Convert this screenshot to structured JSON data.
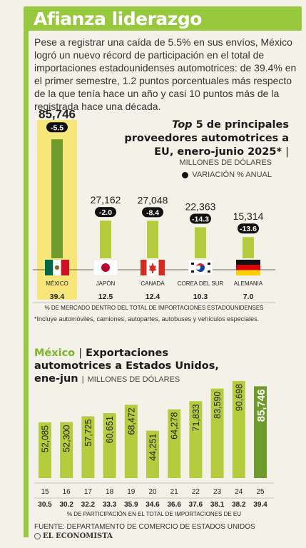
{
  "header": {
    "title": "Afianza liderazgo"
  },
  "intro": "Pese a registrar una caída de 5.5% en sus envíos, México logró un nuevo récord de participación en el total de importaciones estadounidenses automotrices: de 39.4% en el primer semestre, 1.2 puntos porcentuales más respecto de la que tenía hace un año y casi 10 puntos más de la registrada hace una década.",
  "top5": {
    "title_italic": "Top",
    "title_rest": "5 de principales proveedores automotrices a EU, enero-junio 2025*",
    "units": "MILLONES DE DÓLARES",
    "legend_variation": "VARIACIÓN % ANUAL",
    "share_label": "% DE MERCADO DENTRO DEL TOTAL DE IMPORTACIONES ESTADOUNIDENSES",
    "note": "*Incluye automóviles, camiones, autopartes, autobuses y vehículos especiales."
  },
  "exports": {
    "title_green": "México",
    "title_rest1": "Exportaciones",
    "title_rest2": "automotrices a Estados Unidos,",
    "title_rest3": "ene-jun",
    "units": "MILLONES DE DÓLARES",
    "share_label": "% DE PARTICIPACIÓN EN EL TOTAL DE IMPORTACIONES DE EU"
  },
  "footer": {
    "source": "FUENTE: DEPARTAMENTO DE COMERCIO DE ESTADOS UNIDOS",
    "brand": "EL ECONOMISTA"
  },
  "colors": {
    "green": "#97c83d",
    "bar": "#b5cc3e",
    "bar_highlight": "#6f9a2c",
    "mexico_bg": "#f7e67a"
  },
  "chart_data": [
    {
      "type": "bar",
      "title": "Top 5 de principales proveedores automotrices a EU, enero-junio 2025*",
      "categories": [
        "MÉXICO",
        "JAPÓN",
        "CANADÁ",
        "COREA DEL SUR",
        "ALEMANIA"
      ],
      "values_labels": [
        "85,746",
        "27,162",
        "27,048",
        "22,363",
        "15,314"
      ],
      "values": [
        85746,
        27162,
        27048,
        22363,
        15314
      ],
      "variation_labels": [
        "-5.5",
        "-2.0",
        "-8.4",
        "-14.3",
        "-13.6"
      ],
      "variation": [
        -5.5,
        -2.0,
        -8.4,
        -14.3,
        -13.6
      ],
      "share_labels": [
        "39.4",
        "12.5",
        "12.4",
        "10.3",
        "7.0"
      ],
      "share": [
        39.4,
        12.5,
        12.4,
        10.3,
        7.0
      ],
      "flags": [
        "mexico-flag-icon",
        "japan-flag-icon",
        "canada-flag-icon",
        "south-korea-flag-icon",
        "germany-flag-icon"
      ],
      "ylim": [
        0,
        90000
      ]
    },
    {
      "type": "bar",
      "title": "México | Exportaciones automotrices a Estados Unidos, ene-jun",
      "categories": [
        "15",
        "16",
        "17",
        "18",
        "19",
        "20",
        "21",
        "22",
        "23",
        "24",
        "25"
      ],
      "values_labels": [
        "52,085",
        "52,300",
        "57,725",
        "60,651",
        "68,472",
        "44,251",
        "64,278",
        "71,833",
        "83,590",
        "90,698",
        "85,746"
      ],
      "values": [
        52085,
        52300,
        57725,
        60651,
        68472,
        44251,
        64278,
        71833,
        83590,
        90698,
        85746
      ],
      "share_labels": [
        "30.5",
        "30.2",
        "32.2",
        "33.3",
        "35.9",
        "34.6",
        "36.6",
        "37.6",
        "38.1",
        "38.2",
        "39.4"
      ],
      "share": [
        30.5,
        30.2,
        32.2,
        33.3,
        35.9,
        34.6,
        36.6,
        37.6,
        38.1,
        38.2,
        39.4
      ],
      "ylim": [
        0,
        100000
      ]
    }
  ]
}
